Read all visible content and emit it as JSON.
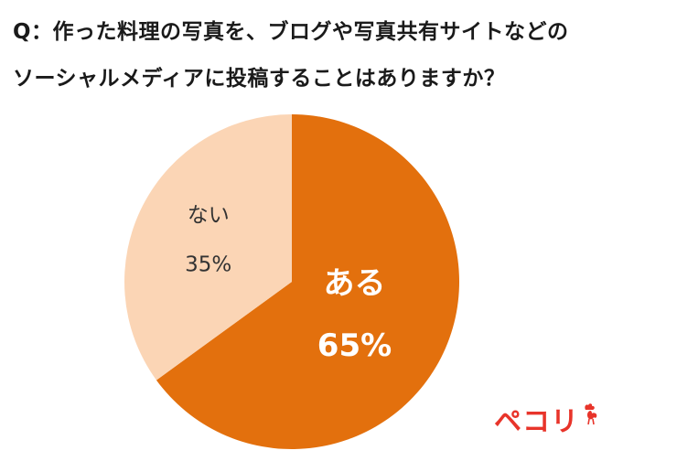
{
  "question": {
    "line1": "Q：作った料理の写真を、ブログや写真共有サイトなどの",
    "line2": "ソーシャルメディアに投稿することはありますか？"
  },
  "chart_data": {
    "type": "pie",
    "title": "Q：作った料理の写真を、ブログや写真共有サイトなどのソーシャルメディアに投稿することはありますか？",
    "slices": [
      {
        "label": "ある",
        "value": 65,
        "value_label": "65%",
        "color": "#e3700d",
        "text_color": "#ffffff"
      },
      {
        "label": "ない",
        "value": 35,
        "value_label": "35%",
        "color": "#fbd5b5",
        "text_color": "#333333"
      }
    ],
    "start_angle_deg": 0,
    "direction": "clockwise"
  },
  "brand": {
    "logo_text": "ペコリ",
    "color": "#e8342a",
    "icon": "chicken-icon"
  }
}
